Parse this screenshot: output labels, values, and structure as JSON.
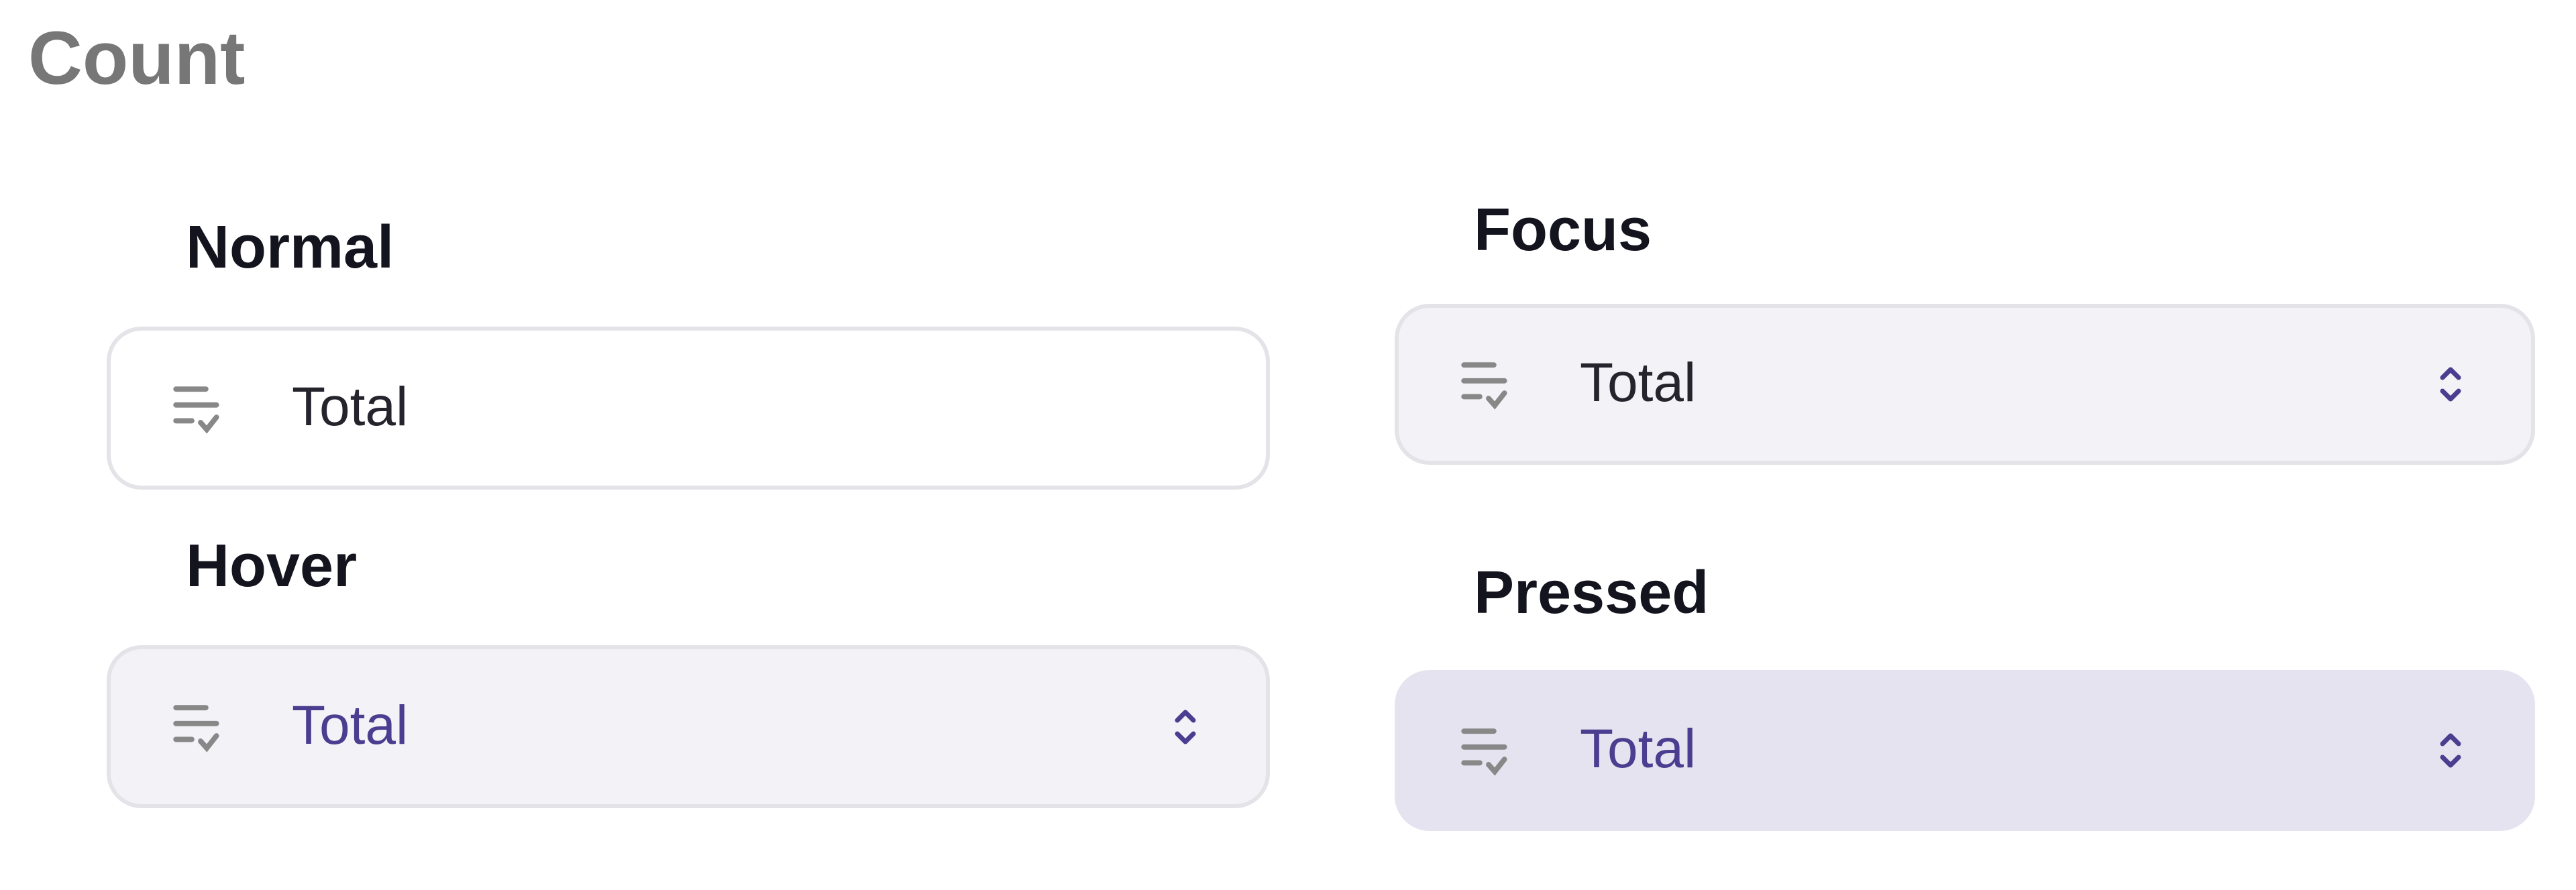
{
  "title": "Count",
  "states": {
    "normal": {
      "label": "Normal",
      "value": "Total"
    },
    "hover": {
      "label": "Hover",
      "value": "Total"
    },
    "focus": {
      "label": "Focus",
      "value": "Total"
    },
    "pressed": {
      "label": "Pressed",
      "value": "Total"
    }
  },
  "icons": {
    "leading": "list-check-icon",
    "trailing": "chevron-up-down-icon"
  },
  "colors": {
    "accent": "#4b3d8f",
    "icon": "#888888",
    "hover_bg": "#f3f2f7",
    "pressed_bg": "#e6e3f0",
    "border": "#e4e3e8"
  }
}
